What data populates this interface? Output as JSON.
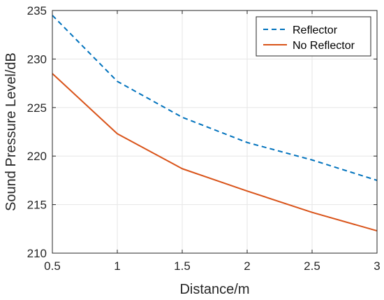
{
  "chart_data": {
    "type": "line",
    "title": "",
    "xlabel": "Distance/m",
    "ylabel": "Sound Pressure Level/dB",
    "xlim": [
      0.5,
      3
    ],
    "ylim": [
      210,
      235
    ],
    "x_ticks": [
      "0.5",
      "1",
      "1.5",
      "2",
      "2.5",
      "3"
    ],
    "y_ticks": [
      "210",
      "215",
      "220",
      "225",
      "230",
      "235"
    ],
    "grid": true,
    "legend_position": "top-right",
    "x": [
      0.5,
      1,
      1.5,
      2,
      2.5,
      3
    ],
    "series": [
      {
        "name": "Reflector",
        "values": [
          234.5,
          227.7,
          224.0,
          221.4,
          219.6,
          217.5
        ],
        "color": "#0072BD",
        "style": "dashed"
      },
      {
        "name": "No Reflector",
        "values": [
          228.5,
          222.3,
          218.7,
          216.4,
          214.2,
          212.3
        ],
        "color": "#D95319",
        "style": "solid"
      }
    ]
  }
}
